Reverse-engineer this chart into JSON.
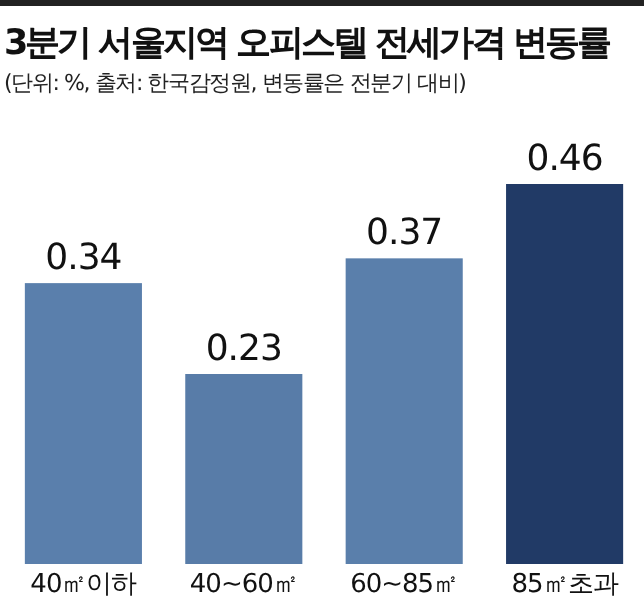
{
  "chart_data": {
    "type": "bar",
    "title": "3분기 서울지역 오피스텔 전세가격 변동률",
    "subtitle": "(단위: %, 출처: 한국감정원, 변동률은 전분기 대비)",
    "categories": [
      "40㎡이하",
      "40~60㎡",
      "60~85㎡",
      "85㎡초과"
    ],
    "values": [
      0.34,
      0.23,
      0.37,
      0.46
    ],
    "colors": [
      "#5a7fac",
      "#587ca8",
      "#5a7fab",
      "#213a66"
    ],
    "data_labels": true
  }
}
